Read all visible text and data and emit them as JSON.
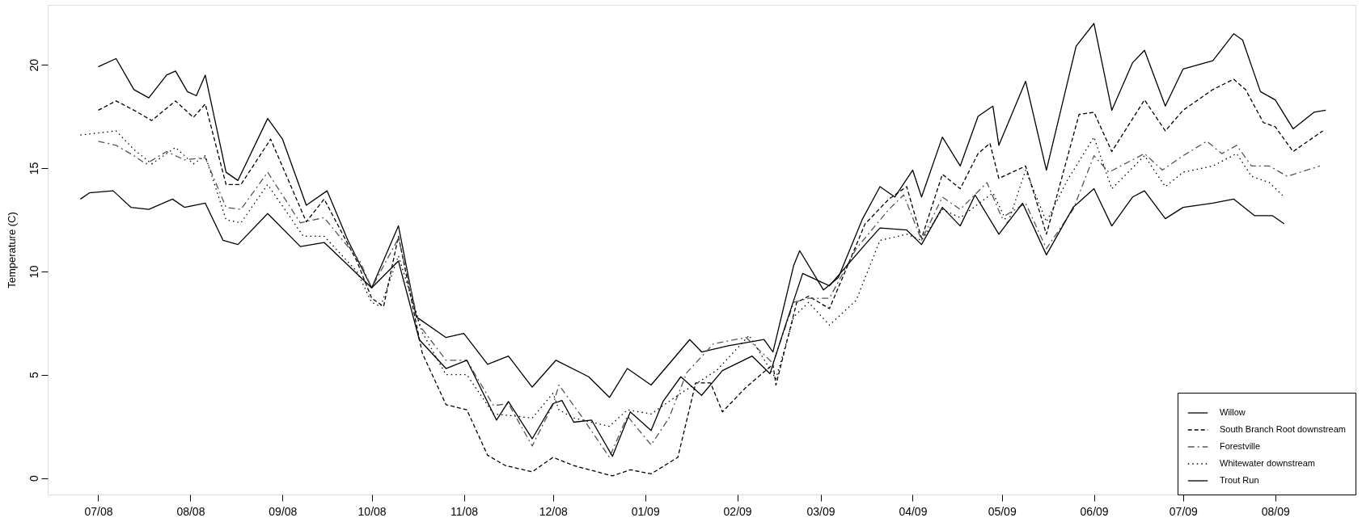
{
  "chart_data": {
    "type": "line",
    "ylabel": "Temperature (C)",
    "xlim": [
      "2008-06-14",
      "2009-08-28"
    ],
    "ylim": [
      -0.8,
      22.9
    ],
    "yticks": [
      0,
      5,
      10,
      15,
      20
    ],
    "xticks": [
      {
        "value": "2008-07-01",
        "label": "07/08"
      },
      {
        "value": "2008-08-01",
        "label": "08/08"
      },
      {
        "value": "2008-09-01",
        "label": "09/08"
      },
      {
        "value": "2008-10-01",
        "label": "10/08"
      },
      {
        "value": "2008-11-01",
        "label": "11/08"
      },
      {
        "value": "2008-12-01",
        "label": "12/08"
      },
      {
        "value": "2009-01-01",
        "label": "01/09"
      },
      {
        "value": "2009-02-01",
        "label": "02/09"
      },
      {
        "value": "2009-03-01",
        "label": "03/09"
      },
      {
        "value": "2009-04-01",
        "label": "04/09"
      },
      {
        "value": "2009-05-01",
        "label": "05/09"
      },
      {
        "value": "2009-06-01",
        "label": "06/09"
      },
      {
        "value": "2009-07-01",
        "label": "07/09"
      },
      {
        "value": "2009-08-01",
        "label": "08/09"
      }
    ],
    "grid": false,
    "legend": "bottom right",
    "marker": "none",
    "series": [
      {
        "name": "Willow",
        "color": "#000000",
        "line_style": "solid",
        "x": [
          "2008-07-01",
          "2008-07-07",
          "2008-07-13",
          "2008-07-18",
          "2008-07-24",
          "2008-07-27",
          "2008-07-31",
          "2008-08-03",
          "2008-08-06",
          "2008-08-13",
          "2008-08-17",
          "2008-08-27",
          "2008-09-01",
          "2008-09-09",
          "2008-09-16",
          "2008-09-23",
          "2008-10-01",
          "2008-10-10",
          "2008-10-16",
          "2008-10-26",
          "2008-11-01",
          "2008-11-09",
          "2008-11-16",
          "2008-11-24",
          "2008-12-02",
          "2008-12-13",
          "2008-12-20",
          "2008-12-26",
          "2009-01-03",
          "2009-01-16",
          "2009-01-20",
          "2009-01-29",
          "2009-02-10",
          "2009-02-13",
          "2009-02-20",
          "2009-02-22",
          "2009-03-02",
          "2009-03-07",
          "2009-03-15",
          "2009-03-21",
          "2009-03-26",
          "2009-04-01",
          "2009-04-04",
          "2009-04-11",
          "2009-04-17",
          "2009-04-23",
          "2009-04-28",
          "2009-04-30",
          "2009-05-09",
          "2009-05-16",
          "2009-05-26",
          "2009-06-01",
          "2009-06-07",
          "2009-06-14",
          "2009-06-18",
          "2009-06-25",
          "2009-07-01",
          "2009-07-11",
          "2009-07-18",
          "2009-07-21",
          "2009-07-27",
          "2009-08-01",
          "2009-08-07",
          "2009-08-14",
          "2009-08-18"
        ],
        "values": [
          19.9,
          20.3,
          18.8,
          18.4,
          19.5,
          19.7,
          18.7,
          18.5,
          19.5,
          14.8,
          14.4,
          17.4,
          16.4,
          13.2,
          13.9,
          11.5,
          9.2,
          12.2,
          7.8,
          6.8,
          7.0,
          5.5,
          5.9,
          4.4,
          5.7,
          4.9,
          3.9,
          5.3,
          4.5,
          6.7,
          6.1,
          6.4,
          6.7,
          6.1,
          10.3,
          11.0,
          9.1,
          9.7,
          12.5,
          14.1,
          13.6,
          14.9,
          13.6,
          16.5,
          15.1,
          17.5,
          18.0,
          16.1,
          19.2,
          14.9,
          20.9,
          22.0,
          17.8,
          20.1,
          20.7,
          18.0,
          19.8,
          20.2,
          21.5,
          21.2,
          18.7,
          18.3,
          16.9,
          17.7,
          17.8
        ]
      },
      {
        "name": "South Branch Root downstream",
        "color": "#000000",
        "line_style": "dashed",
        "x": [
          "2008-07-01",
          "2008-07-07",
          "2008-07-13",
          "2008-07-19",
          "2008-07-27",
          "2008-08-02",
          "2008-08-06",
          "2008-08-13",
          "2008-08-18",
          "2008-08-28",
          "2008-09-09",
          "2008-09-15",
          "2008-09-26",
          "2008-10-01",
          "2008-10-05",
          "2008-10-10",
          "2008-10-18",
          "2008-10-26",
          "2008-11-02",
          "2008-11-09",
          "2008-11-15",
          "2008-11-24",
          "2008-12-01",
          "2008-12-08",
          "2008-12-21",
          "2008-12-27",
          "2009-01-03",
          "2009-01-12",
          "2009-01-18",
          "2009-01-23",
          "2009-01-27",
          "2009-02-04",
          "2009-02-13",
          "2009-02-14",
          "2009-02-21",
          "2009-02-25",
          "2009-03-04",
          "2009-03-08",
          "2009-03-16",
          "2009-03-24",
          "2009-03-30",
          "2009-04-04",
          "2009-04-11",
          "2009-04-17",
          "2009-04-23",
          "2009-04-27",
          "2009-04-30",
          "2009-05-09",
          "2009-05-16",
          "2009-05-27",
          "2009-06-01",
          "2009-06-07",
          "2009-06-18",
          "2009-06-25",
          "2009-07-01",
          "2009-07-11",
          "2009-07-18",
          "2009-07-22",
          "2009-07-28",
          "2009-08-01",
          "2009-08-07",
          "2009-08-17"
        ],
        "values": [
          17.8,
          18.25,
          17.8,
          17.3,
          18.25,
          17.45,
          18.1,
          14.2,
          14.2,
          16.4,
          12.4,
          13.5,
          10.5,
          8.7,
          8.3,
          11.7,
          6.05,
          3.55,
          3.3,
          1.1,
          0.6,
          0.3,
          1.0,
          0.6,
          0.1,
          0.4,
          0.2,
          1.0,
          4.6,
          4.6,
          3.2,
          4.4,
          5.5,
          4.5,
          8.5,
          8.8,
          8.2,
          9.55,
          12.3,
          13.5,
          14.1,
          11.6,
          14.7,
          14.0,
          15.7,
          16.2,
          14.5,
          15.1,
          11.8,
          17.6,
          17.7,
          15.8,
          18.3,
          16.8,
          17.8,
          18.8,
          19.3,
          18.8,
          17.2,
          17.0,
          15.8,
          16.8
        ]
      },
      {
        "name": "Forestville",
        "color": "#555555",
        "line_style": "dashdot",
        "x": [
          "2008-07-01",
          "2008-07-07",
          "2008-07-13",
          "2008-07-17",
          "2008-07-24",
          "2008-07-30",
          "2008-08-06",
          "2008-08-13",
          "2008-08-18",
          "2008-08-27",
          "2008-09-07",
          "2008-09-15",
          "2008-09-27",
          "2008-10-01",
          "2008-10-10",
          "2008-10-17",
          "2008-10-26",
          "2008-11-02",
          "2008-11-11",
          "2008-11-16",
          "2008-11-24",
          "2008-12-01",
          "2008-12-03",
          "2008-12-11",
          "2008-12-20",
          "2008-12-26",
          "2009-01-03",
          "2009-01-09",
          "2009-01-15",
          "2009-01-24",
          "2009-02-04",
          "2009-02-13",
          "2009-02-20",
          "2009-02-25",
          "2009-03-04",
          "2009-03-13",
          "2009-03-24",
          "2009-03-29",
          "2009-04-04",
          "2009-04-11",
          "2009-04-17",
          "2009-04-26",
          "2009-05-01",
          "2009-05-09",
          "2009-05-16",
          "2009-05-25",
          "2009-06-01",
          "2009-06-06",
          "2009-06-18",
          "2009-06-24",
          "2009-07-01",
          "2009-07-09",
          "2009-07-14",
          "2009-07-19",
          "2009-07-24",
          "2009-07-30",
          "2009-08-05",
          "2009-08-16"
        ],
        "values": [
          16.3,
          16.1,
          15.6,
          15.2,
          15.8,
          15.4,
          15.5,
          13.1,
          13.0,
          14.8,
          12.35,
          12.6,
          10.5,
          9.2,
          11.6,
          7.4,
          5.7,
          5.7,
          3.5,
          3.6,
          1.55,
          3.55,
          4.5,
          2.9,
          1.0,
          3.0,
          1.6,
          2.9,
          5.1,
          6.5,
          6.8,
          5.55,
          8.5,
          8.7,
          8.7,
          11.1,
          13.0,
          13.7,
          11.5,
          13.6,
          13.0,
          14.3,
          12.6,
          13.3,
          11.1,
          13.0,
          15.6,
          14.8,
          15.7,
          14.9,
          15.6,
          16.3,
          15.7,
          16.1,
          15.1,
          15.1,
          14.6,
          15.1
        ]
      },
      {
        "name": "Whitewater downstream",
        "color": "#000000",
        "line_style": "dotted",
        "x": [
          "2008-06-25",
          "2008-07-07",
          "2008-07-13",
          "2008-07-19",
          "2008-07-27",
          "2008-08-02",
          "2008-08-06",
          "2008-08-13",
          "2008-08-18",
          "2008-08-27",
          "2008-09-08",
          "2008-09-15",
          "2008-09-26",
          "2008-10-01",
          "2008-10-04",
          "2008-10-10",
          "2008-10-18",
          "2008-10-26",
          "2008-11-02",
          "2008-11-11",
          "2008-11-18",
          "2008-11-24",
          "2008-12-01",
          "2008-12-03",
          "2008-12-08",
          "2008-12-20",
          "2008-12-26",
          "2009-01-03",
          "2009-01-13",
          "2009-01-25",
          "2009-02-05",
          "2009-02-14",
          "2009-02-20",
          "2009-02-25",
          "2009-03-04",
          "2009-03-13",
          "2009-03-21",
          "2009-03-30",
          "2009-04-04",
          "2009-04-11",
          "2009-04-17",
          "2009-04-28",
          "2009-05-03",
          "2009-05-09",
          "2009-05-16",
          "2009-05-23",
          "2009-06-01",
          "2009-06-07",
          "2009-06-18",
          "2009-06-25",
          "2009-07-01",
          "2009-07-11",
          "2009-07-19",
          "2009-07-24",
          "2009-07-30",
          "2009-08-04"
        ],
        "values": [
          16.6,
          16.8,
          15.9,
          15.2,
          16.0,
          15.2,
          15.6,
          12.5,
          12.35,
          14.2,
          11.7,
          11.7,
          10.0,
          8.5,
          8.3,
          10.75,
          7.05,
          5.0,
          5.0,
          3.1,
          3.0,
          2.9,
          4.1,
          3.3,
          2.9,
          2.5,
          3.3,
          3.1,
          4.1,
          5.2,
          6.9,
          4.8,
          7.8,
          8.5,
          7.4,
          8.6,
          11.5,
          11.8,
          11.5,
          13.0,
          12.6,
          13.8,
          12.3,
          14.9,
          12.4,
          14.4,
          16.5,
          14.0,
          15.6,
          14.1,
          14.8,
          15.1,
          15.7,
          14.6,
          14.3,
          13.6
        ]
      },
      {
        "name": "Trout Run",
        "color": "#000000",
        "line_style": "solid",
        "x": [
          "2008-06-25",
          "2008-06-28",
          "2008-07-06",
          "2008-07-12",
          "2008-07-18",
          "2008-07-26",
          "2008-07-30",
          "2008-08-06",
          "2008-08-12",
          "2008-08-17",
          "2008-08-27",
          "2008-09-07",
          "2008-09-15",
          "2008-10-01",
          "2008-10-10",
          "2008-10-17",
          "2008-10-26",
          "2008-11-02",
          "2008-11-12",
          "2008-11-16",
          "2008-11-24",
          "2008-12-01",
          "2008-12-04",
          "2008-12-08",
          "2008-12-14",
          "2008-12-21",
          "2008-12-27",
          "2009-01-03",
          "2009-01-07",
          "2009-01-13",
          "2009-01-20",
          "2009-01-27",
          "2009-02-06",
          "2009-02-12",
          "2009-02-17",
          "2009-02-23",
          "2009-03-04",
          "2009-03-16",
          "2009-03-21",
          "2009-03-30",
          "2009-04-04",
          "2009-04-11",
          "2009-04-17",
          "2009-04-22",
          "2009-04-30",
          "2009-05-08",
          "2009-05-16",
          "2009-05-25",
          "2009-06-01",
          "2009-06-07",
          "2009-06-14",
          "2009-06-18",
          "2009-06-25",
          "2009-07-01",
          "2009-07-11",
          "2009-07-18",
          "2009-07-25",
          "2009-07-31",
          "2009-08-04"
        ],
        "values": [
          13.5,
          13.8,
          13.9,
          13.1,
          13.0,
          13.5,
          13.1,
          13.3,
          11.5,
          11.3,
          12.8,
          11.2,
          11.4,
          9.2,
          10.5,
          6.7,
          5.3,
          5.7,
          2.8,
          3.7,
          1.9,
          3.6,
          3.75,
          2.7,
          2.8,
          1.05,
          3.2,
          2.3,
          3.7,
          4.9,
          4.0,
          5.2,
          5.9,
          5.05,
          7.3,
          9.9,
          9.3,
          11.3,
          12.1,
          12.0,
          11.3,
          13.1,
          12.2,
          13.7,
          11.8,
          13.3,
          10.8,
          13.1,
          14.0,
          12.2,
          13.6,
          13.9,
          12.55,
          13.1,
          13.3,
          13.5,
          12.7,
          12.7,
          12.3
        ]
      }
    ]
  }
}
